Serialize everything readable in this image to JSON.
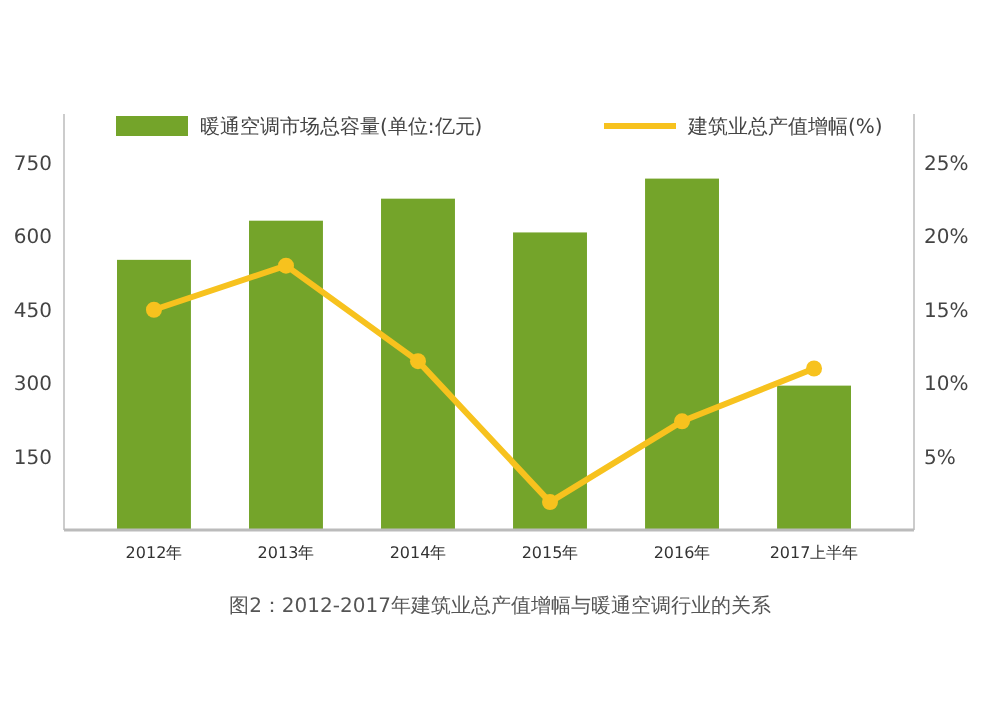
{
  "chart_data": {
    "type": "bar",
    "categories": [
      "2012年",
      "2013年",
      "2014年",
      "2015年",
      "2016年",
      "2017上半年"
    ],
    "series": [
      {
        "name": "暖通空调市场总容量(单位:亿元)",
        "color": "#74a42a",
        "values": [
          552,
          632,
          677,
          608,
          718,
          295
        ]
      },
      {
        "name": "建筑业总产值增幅(%)",
        "type": "line",
        "axis": "y2",
        "color": "#f7c21e",
        "values": [
          15,
          18,
          11.5,
          1.9,
          7.4,
          11
        ]
      }
    ],
    "ylim": [
      0,
      850
    ],
    "yticks": [
      150,
      300,
      450,
      600,
      750
    ],
    "y2lim": [
      0,
      28.33
    ],
    "y2ticks": [
      {
        "value": 5,
        "label": "5%"
      },
      {
        "value": 10,
        "label": "10%"
      },
      {
        "value": 15,
        "label": "15%"
      },
      {
        "value": 20,
        "label": "20%"
      },
      {
        "value": 25,
        "label": "25%"
      }
    ],
    "marker": "circle",
    "legend": "top",
    "grid": false,
    "annotations": [
      "图2：2012-2017年建筑业总产值增幅与暖通空调行业的关系"
    ]
  }
}
